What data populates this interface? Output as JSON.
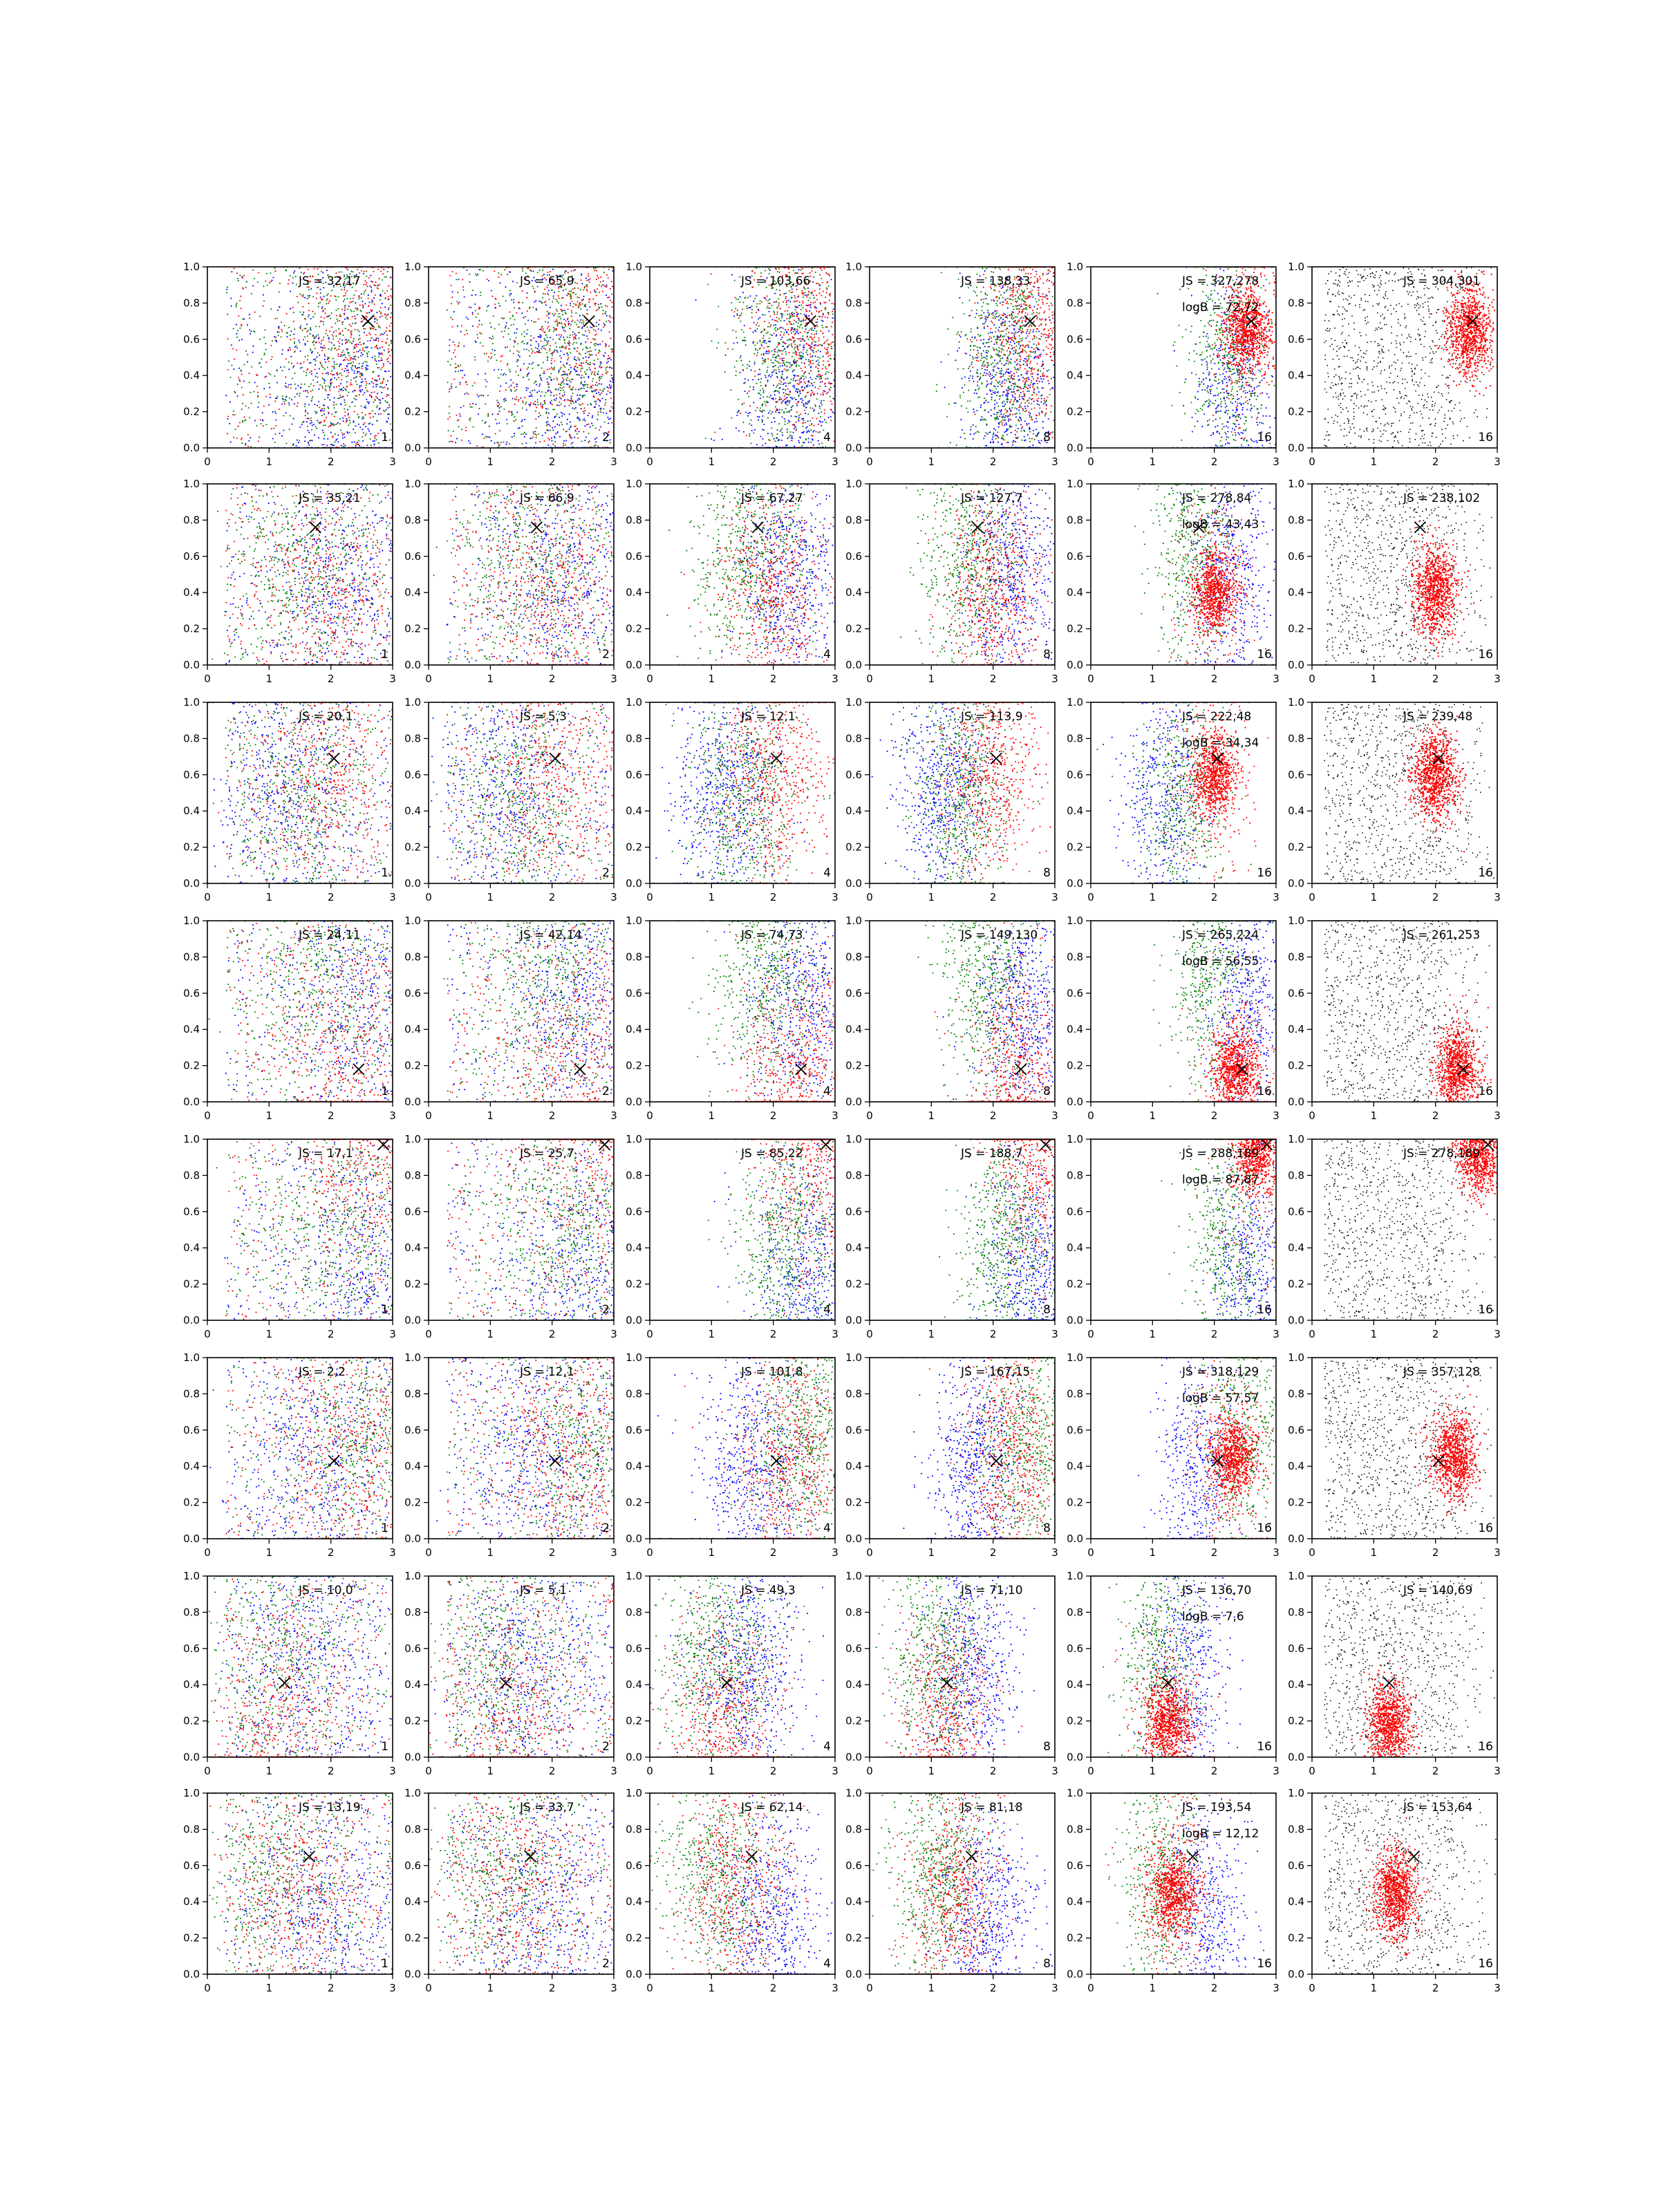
{
  "chart_data": {
    "type": "scatter",
    "layout": {
      "rows": 8,
      "cols": 6
    },
    "xlim": [
      0,
      3
    ],
    "ylim": [
      0,
      1
    ],
    "xticks": [
      "0",
      "1",
      "2",
      "3"
    ],
    "yticks": [
      "0.0",
      "0.2",
      "0.4",
      "0.6",
      "0.8",
      "1.0"
    ],
    "grid": false,
    "colors": {
      "red": "#ff0000",
      "green": "#008000",
      "blue": "#0000ff",
      "black": "#000000",
      "frame": "#000000"
    },
    "rows": [
      {
        "marker": [
          2.6,
          0.7
        ],
        "js": [
          "JS = 32,17",
          "JS = 65,9",
          "JS = 103,66",
          "JS = 138,33",
          "JS = 327,278",
          "JS = 304,301"
        ],
        "logB": "logB = 72,72",
        "k": [
          "1",
          "2",
          "4",
          "8",
          "16",
          "16"
        ],
        "clusters": {
          "red": [
            2.55,
            0.65
          ],
          "blue": [
            2.3,
            0.3
          ],
          "green": [
            2.2,
            0.55
          ]
        }
      },
      {
        "marker": [
          1.75,
          0.76
        ],
        "js": [
          "JS = 35,21",
          "JS = 66,9",
          "JS = 67,27",
          "JS = 127,7",
          "JS = 278,84",
          "JS = 238,102"
        ],
        "logB": "logB = 43,43",
        "k": [
          "1",
          "2",
          "4",
          "8",
          "16",
          "16"
        ],
        "clusters": {
          "red": [
            2.0,
            0.4
          ],
          "blue": [
            2.3,
            0.5
          ],
          "green": [
            1.6,
            0.6
          ]
        }
      },
      {
        "marker": [
          2.05,
          0.69
        ],
        "js": [
          "JS = 20,1",
          "JS = 5,3",
          "JS = 12,1",
          "JS = 113,9",
          "JS = 222,48",
          "JS = 239,48"
        ],
        "logB": "logB = 34,34",
        "k": [
          "1",
          "2",
          "4",
          "8",
          "16",
          "16"
        ],
        "clusters": {
          "red": [
            2.0,
            0.6
          ],
          "blue": [
            1.2,
            0.5
          ],
          "green": [
            1.5,
            0.45
          ]
        }
      },
      {
        "marker": [
          2.45,
          0.18
        ],
        "js": [
          "JS = 24,11",
          "JS = 42,14",
          "JS = 74,73",
          "JS = 149,130",
          "JS = 265,224",
          "JS = 261,253"
        ],
        "logB": "logB = 56,55",
        "k": [
          "1",
          "2",
          "4",
          "8",
          "16",
          "16"
        ],
        "clusters": {
          "red": [
            2.35,
            0.18
          ],
          "blue": [
            2.5,
            0.55
          ],
          "green": [
            1.9,
            0.7
          ]
        }
      },
      {
        "marker": [
          2.85,
          0.97
        ],
        "js": [
          "JS = 17,1",
          "JS = 25,7",
          "JS = 85,22",
          "JS = 188,7",
          "JS = 288,189",
          "JS = 278,189"
        ],
        "logB": "logB = 87,87",
        "k": [
          "1",
          "2",
          "4",
          "8",
          "16",
          "16"
        ],
        "clusters": {
          "red": [
            2.7,
            0.93
          ],
          "blue": [
            2.6,
            0.25
          ],
          "green": [
            2.2,
            0.45
          ]
        }
      },
      {
        "marker": [
          2.05,
          0.43
        ],
        "js": [
          "JS = 2,2",
          "JS = 12,1",
          "JS = 101,8",
          "JS = 167,15",
          "JS = 318,129",
          "JS = 357,128"
        ],
        "logB": "logB = 57,57",
        "k": [
          "1",
          "2",
          "4",
          "8",
          "16",
          "16"
        ],
        "clusters": {
          "red": [
            2.3,
            0.45
          ],
          "blue": [
            1.7,
            0.4
          ],
          "green": [
            2.5,
            0.55
          ]
        }
      },
      {
        "marker": [
          1.25,
          0.41
        ],
        "js": [
          "JS = 10,0",
          "JS = 5,1",
          "JS = 49,3",
          "JS = 71,10",
          "JS = 136,70",
          "JS = 140,69"
        ],
        "logB": "logB = 7,6",
        "k": [
          "1",
          "2",
          "4",
          "8",
          "16",
          "16"
        ],
        "clusters": {
          "red": [
            1.25,
            0.18
          ],
          "blue": [
            1.6,
            0.5
          ],
          "green": [
            1.1,
            0.55
          ]
        }
      },
      {
        "marker": [
          1.65,
          0.65
        ],
        "js": [
          "JS = 13,19",
          "JS = 33,7",
          "JS = 62,14",
          "JS = 81,18",
          "JS = 193,54",
          "JS = 153,64"
        ],
        "logB": "logB = 12,12",
        "k": [
          "1",
          "2",
          "4",
          "8",
          "16",
          "16"
        ],
        "clusters": {
          "red": [
            1.35,
            0.45
          ],
          "blue": [
            1.9,
            0.3
          ],
          "green": [
            1.1,
            0.55
          ]
        }
      }
    ]
  }
}
